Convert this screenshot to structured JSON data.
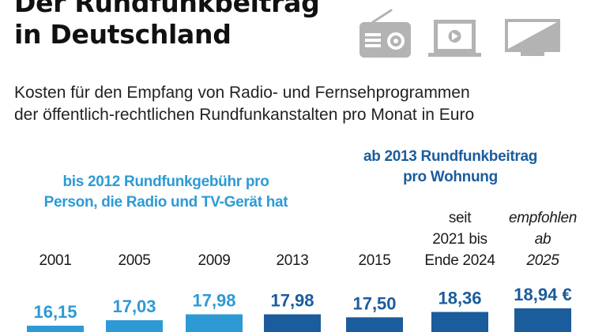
{
  "title_lines": [
    "Der Rundfunkbeitrag",
    "in Deutschland"
  ],
  "subtitle_lines": [
    "Kosten für den Empfang von Radio- und Fernsehprogrammen",
    "der öffentlich-rechtlichen Rundfunkanstalten pro Monat in Euro"
  ],
  "icons": [
    "radio-icon",
    "laptop-icon",
    "tv-icon"
  ],
  "eras": {
    "old_lines": [
      "bis 2012 Rundfunkgebühr pro",
      "Person, die Radio und TV-Gerät hat"
    ],
    "new_lines": [
      "ab 2013 Rundfunkbeitrag",
      "pro Wohnung"
    ]
  },
  "colors": {
    "light_blue": "#2d9ad6",
    "dark_blue": "#1b5c9c",
    "icon_grey": "#b3b3b3"
  },
  "chart_data": {
    "type": "bar",
    "categories": [
      [
        "2001"
      ],
      [
        "2005"
      ],
      [
        "2009"
      ],
      [
        "2013"
      ],
      [
        "2015"
      ],
      [
        "seit",
        "2021 bis",
        "Ende 2024"
      ],
      [
        "empfohlen",
        "ab",
        "2025"
      ]
    ],
    "values": [
      16.15,
      17.03,
      17.98,
      17.98,
      17.5,
      18.36,
      18.94
    ],
    "value_labels": [
      "16,15",
      "17,03",
      "17,98",
      "17,98",
      "17,50",
      "18,36",
      "18,94 €"
    ],
    "bar_colors": [
      "#2d9ad6",
      "#2d9ad6",
      "#2d9ad6",
      "#1b5c9c",
      "#1b5c9c",
      "#1b5c9c",
      "#1b5c9c"
    ],
    "ylim": [
      16.15,
      18.94
    ],
    "xlabel": "",
    "ylabel": ""
  }
}
